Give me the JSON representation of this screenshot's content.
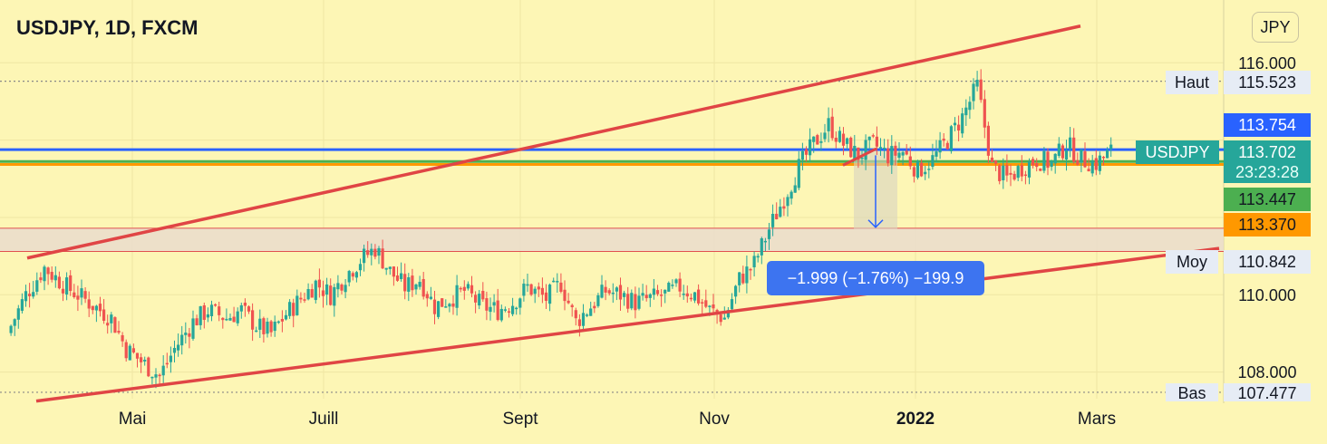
{
  "header": {
    "title": "USDJPY, 1D, FXCM",
    "currency_button": "JPY"
  },
  "chart_data": {
    "type": "candlestick",
    "symbol": "USDJPY",
    "interval": "1D",
    "exchange": "FXCM",
    "currency": "JPY",
    "x_axis_labels": [
      "Mai",
      "Juill",
      "Sept",
      "Nov",
      "2022",
      "Mars"
    ],
    "y_axis_ticks": [
      "116.000",
      "110.000",
      "108.000"
    ],
    "ylim": [
      107.2,
      117.0
    ],
    "annotations": {
      "high": {
        "label": "Haut",
        "value": "115.523"
      },
      "average": {
        "label": "Moy",
        "value": "110.842"
      },
      "low": {
        "label": "Bas",
        "value": "107.477"
      }
    },
    "price_tags": [
      {
        "value": "113.754",
        "color": "#2962ff"
      },
      {
        "value": "113.702",
        "countdown": "23:23:28",
        "symbol_label": "USDJPY",
        "color": "#26a69a"
      },
      {
        "value": "113.447",
        "color": "#4caf50"
      },
      {
        "value": "113.370",
        "color": "#ff9800"
      }
    ],
    "measurement": {
      "text": "−1.999 (−1.76%) −199.9",
      "from": 113.7,
      "to": 111.7
    },
    "horizontal_lines": [
      {
        "value": 113.754,
        "color": "#2962ff"
      },
      {
        "value": 113.447,
        "color": "#4caf50"
      },
      {
        "value": 113.37,
        "color": "#ff9800"
      },
      {
        "value": 111.72,
        "color": "#e05050"
      },
      {
        "value": 111.12,
        "color": "#e05050"
      }
    ],
    "support_zone": [
      111.12,
      111.72
    ],
    "trendlines": [
      {
        "name": "upper channel",
        "color": "#e04545"
      },
      {
        "name": "lower channel",
        "color": "#e04545"
      }
    ],
    "colors": {
      "up": "#26a69a",
      "down": "#ef5350",
      "background": "#fdf6b5"
    },
    "candles_close_path": [
      [
        0,
        109.0
      ],
      [
        5,
        110.0
      ],
      [
        10,
        110.7
      ],
      [
        16,
        110.2
      ],
      [
        22,
        109.8
      ],
      [
        28,
        109.4
      ],
      [
        32,
        108.6
      ],
      [
        37,
        108.2
      ],
      [
        41,
        107.9
      ],
      [
        45,
        108.6
      ],
      [
        50,
        109.3
      ],
      [
        54,
        109.6
      ],
      [
        59,
        109.4
      ],
      [
        63,
        109.6
      ],
      [
        67,
        109.2
      ],
      [
        71,
        109.0
      ],
      [
        75,
        109.5
      ],
      [
        79,
        109.9
      ],
      [
        83,
        110.3
      ],
      [
        87,
        110.0
      ],
      [
        91,
        110.5
      ],
      [
        95,
        110.9
      ],
      [
        99,
        111.2
      ],
      [
        103,
        110.6
      ],
      [
        107,
        110.2
      ],
      [
        111,
        110.4
      ],
      [
        115,
        109.7
      ],
      [
        119,
        109.9
      ],
      [
        123,
        110.1
      ],
      [
        128,
        109.7
      ],
      [
        132,
        109.6
      ],
      [
        136,
        109.8
      ],
      [
        140,
        110.2
      ],
      [
        145,
        109.9
      ],
      [
        149,
        110.3
      ],
      [
        153,
        109.3
      ],
      [
        157,
        109.7
      ],
      [
        161,
        110.1
      ],
      [
        165,
        110.0
      ],
      [
        169,
        109.8
      ],
      [
        173,
        109.9
      ],
      [
        177,
        110.0
      ],
      [
        181,
        110.2
      ],
      [
        185,
        110.0
      ],
      [
        189,
        109.6
      ],
      [
        193,
        109.4
      ],
      [
        197,
        110.4
      ],
      [
        201,
        110.8
      ],
      [
        205,
        111.7
      ],
      [
        209,
        112.5
      ],
      [
        213,
        113.3
      ],
      [
        217,
        113.9
      ],
      [
        221,
        114.4
      ],
      [
        225,
        113.9
      ],
      [
        229,
        113.6
      ],
      [
        233,
        113.9
      ],
      [
        237,
        113.6
      ],
      [
        241,
        113.7
      ],
      [
        245,
        113.2
      ],
      [
        249,
        113.5
      ],
      [
        253,
        114.0
      ],
      [
        257,
        114.6
      ],
      [
        261,
        115.4
      ],
      [
        265,
        113.3
      ],
      [
        269,
        113.0
      ],
      [
        273,
        113.3
      ],
      [
        277,
        113.5
      ],
      [
        281,
        113.4
      ],
      [
        285,
        113.9
      ],
      [
        289,
        113.5
      ],
      [
        293,
        113.4
      ],
      [
        297,
        113.7
      ]
    ]
  }
}
